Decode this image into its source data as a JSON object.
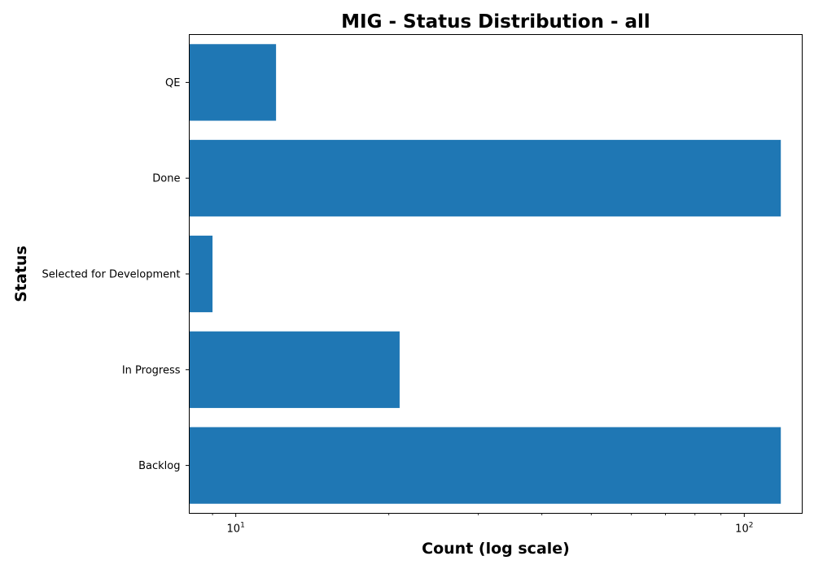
{
  "chart_data": {
    "type": "bar",
    "orientation": "horizontal",
    "title": "MIG - Status Distribution - all",
    "xlabel": "Count (log scale)",
    "ylabel": "Status",
    "x_scale": "log",
    "xlim": [
      8.1,
      130
    ],
    "categories": [
      "QE",
      "Done",
      "Selected for Development",
      "In Progress",
      "Backlog"
    ],
    "values": [
      12,
      118,
      9,
      21,
      118
    ],
    "x_ticks": [
      {
        "value": 10,
        "base": "10",
        "exponent": "1"
      },
      {
        "value": 100,
        "base": "10",
        "exponent": "2"
      }
    ],
    "bar_color": "#1f77b4",
    "grid": false,
    "legend": "none"
  }
}
